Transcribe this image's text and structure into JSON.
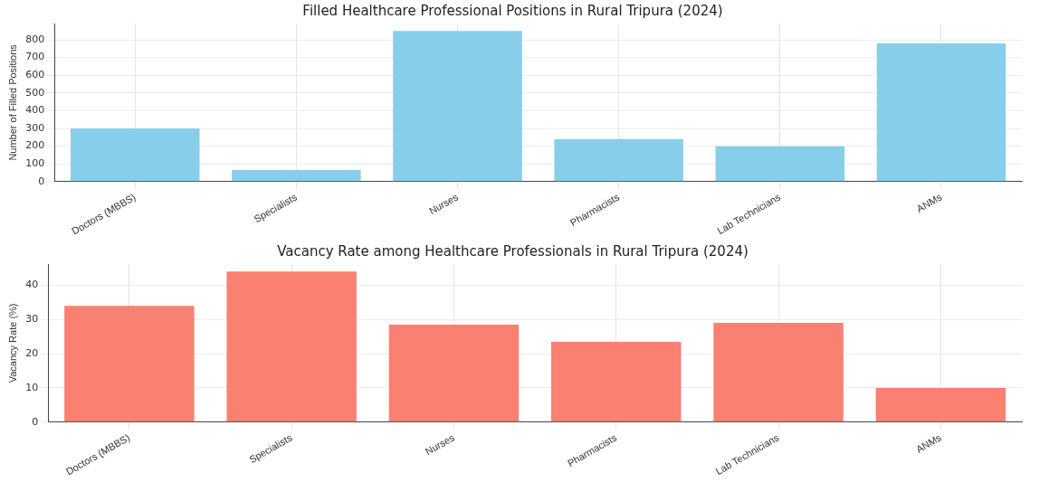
{
  "chart_data": [
    {
      "type": "bar",
      "title": "Filled Healthcare Professional Positions in Rural Tripura (2024)",
      "ylabel": "Number of Filled Positions",
      "categories": [
        "Doctors (MBBS)",
        "Specialists",
        "Nurses",
        "Pharmacists",
        "Lab Technicians",
        "ANMs"
      ],
      "values": [
        300,
        65,
        850,
        240,
        200,
        780
      ],
      "color": "#87ceeb",
      "ylim": [
        0,
        892
      ],
      "yticks": [
        0,
        100,
        200,
        300,
        400,
        500,
        600,
        700,
        800
      ],
      "grid": true
    },
    {
      "type": "bar",
      "title": "Vacancy Rate among Healthcare Professionals in Rural Tripura (2024)",
      "ylabel": "Vacancy Rate (%)",
      "categories": [
        "Doctors (MBBS)",
        "Specialists",
        "Nurses",
        "Pharmacists",
        "Lab Technicians",
        "ANMs"
      ],
      "values": [
        34,
        44,
        28.5,
        23.5,
        29,
        10
      ],
      "color": "#fa8072",
      "ylim": [
        0,
        46.2
      ],
      "yticks": [
        0,
        10,
        20,
        30,
        40
      ],
      "grid": true
    }
  ]
}
